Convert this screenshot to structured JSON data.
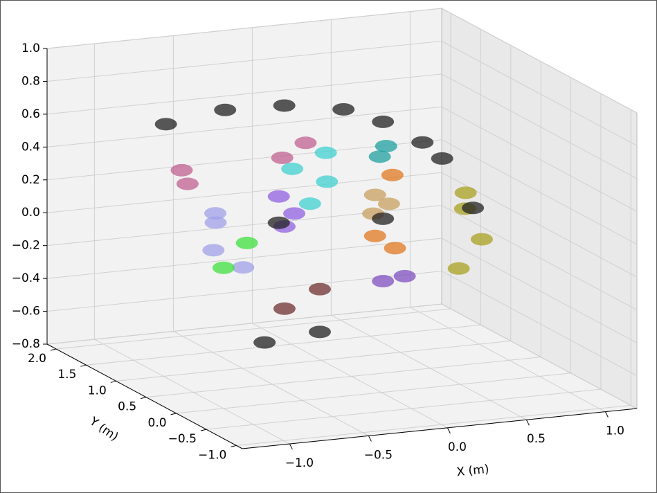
{
  "chart_data": {
    "type": "scatter3d",
    "xlabel": "X (m)",
    "ylabel": "Y (m)",
    "xlim": [
      -1.3,
      1.2
    ],
    "ylim": [
      -1.1,
      2.15
    ],
    "zlim": [
      -0.8,
      1.0
    ],
    "xticks": [
      {
        "value": -1.0,
        "label": "−1.0"
      },
      {
        "value": -0.5,
        "label": "−0.5"
      },
      {
        "value": 0.0,
        "label": "0.0"
      },
      {
        "value": 0.5,
        "label": "0.5"
      },
      {
        "value": 1.0,
        "label": "1.0"
      }
    ],
    "yticks": [
      {
        "value": -1.0,
        "label": "−1.0"
      },
      {
        "value": -0.5,
        "label": "−0.5"
      },
      {
        "value": 0.0,
        "label": "0.0"
      },
      {
        "value": 0.5,
        "label": "0.5"
      },
      {
        "value": 1.0,
        "label": "1.0"
      },
      {
        "value": 1.5,
        "label": "1.5"
      },
      {
        "value": 2.0,
        "label": "2.0"
      }
    ],
    "zticks": [
      {
        "value": -0.8,
        "label": "−0.8"
      },
      {
        "value": -0.6,
        "label": "−0.6"
      },
      {
        "value": -0.4,
        "label": "−0.4"
      },
      {
        "value": -0.2,
        "label": "−0.2"
      },
      {
        "value": 0.0,
        "label": "0.0"
      },
      {
        "value": 0.2,
        "label": "0.2"
      },
      {
        "value": 0.4,
        "label": "0.4"
      },
      {
        "value": 0.6,
        "label": "0.6"
      },
      {
        "value": 0.8,
        "label": "0.8"
      },
      {
        "value": 1.0,
        "label": "1.0"
      }
    ],
    "grid": true,
    "series": [
      {
        "color": "#c06090",
        "x": [
          -1.075,
          -0.29,
          -1.0,
          -0.4
        ],
        "y": [
          0.5,
          0.5,
          0.6,
          0.6
        ],
        "z": [
          0.56,
          0.65,
          0.45,
          0.55
        ]
      },
      {
        "color": "#40d0d0",
        "x": [
          -0.375,
          -0.155,
          -0.3,
          -0.2
        ],
        "y": [
          0.5,
          0.5,
          0.4,
          0.4
        ],
        "z": [
          0.5,
          0.4,
          0.3,
          0.6
        ]
      },
      {
        "color": "#a0a0e8",
        "x": [
          -0.86,
          -0.95,
          -0.8,
          -0.9
        ],
        "y": [
          0.5,
          0.3,
          0.2,
          0.4
        ],
        "z": [
          0.22,
          0.1,
          0.0,
          0.3
        ]
      },
      {
        "color": "#9060e0",
        "x": [
          -0.46,
          -0.4,
          -0.5
        ],
        "y": [
          0.5,
          0.4,
          0.3
        ],
        "z": [
          0.34,
          0.25,
          0.2
        ]
      },
      {
        "color": "#c8a060",
        "x": [
          0.15,
          0.1,
          0.2
        ],
        "y": [
          0.5,
          0.4,
          0.4
        ],
        "z": [
          0.29,
          0.2,
          0.25
        ]
      },
      {
        "color": "#e07820",
        "x": [
          0.26,
          0.15,
          0.2
        ],
        "y": [
          0.5,
          0.5,
          0.3
        ],
        "z": [
          0.4,
          0.04,
          0.0
        ]
      },
      {
        "color": "#20a0a0",
        "x": [
          0.22,
          0.18
        ],
        "y": [
          0.5,
          0.5
        ],
        "z": [
          0.58,
          0.52
        ]
      },
      {
        "color": "#a8a020",
        "x": [
          0.72,
          0.68,
          0.8,
          0.75
        ],
        "y": [
          0.5,
          0.5,
          0.7,
          0.3
        ],
        "z": [
          0.15,
          -0.21,
          0.2,
          0.0
        ]
      },
      {
        "color": "#703030",
        "x": [
          -0.5,
          -0.2
        ],
        "y": [
          0.3,
          0.5
        ],
        "z": [
          -0.3,
          -0.25
        ]
      },
      {
        "color": "#40e040",
        "x": [
          -0.81,
          -0.7
        ],
        "y": [
          0.5,
          0.4
        ],
        "z": [
          -0.06,
          0.1
        ]
      },
      {
        "color": "#8050c0",
        "x": [
          0.2,
          0.3
        ],
        "y": [
          0.5,
          0.4
        ],
        "z": [
          -0.24,
          -0.2
        ]
      },
      {
        "color": "#222222",
        "x": [
          -1.175,
          -0.8,
          -0.425,
          -0.05,
          0.2,
          0.45,
          0.575,
          -0.46,
          0.2,
          0.77,
          -0.55,
          -0.2
        ],
        "y": [
          0.5,
          0.5,
          0.5,
          0.5,
          0.5,
          0.5,
          0.5,
          0.5,
          0.5,
          0.5,
          0.5,
          0.5
        ],
        "z": [
          0.85,
          0.9,
          0.89,
          0.83,
          0.73,
          0.58,
          0.47,
          0.18,
          0.14,
          0.15,
          -0.54,
          -0.51
        ]
      }
    ]
  }
}
